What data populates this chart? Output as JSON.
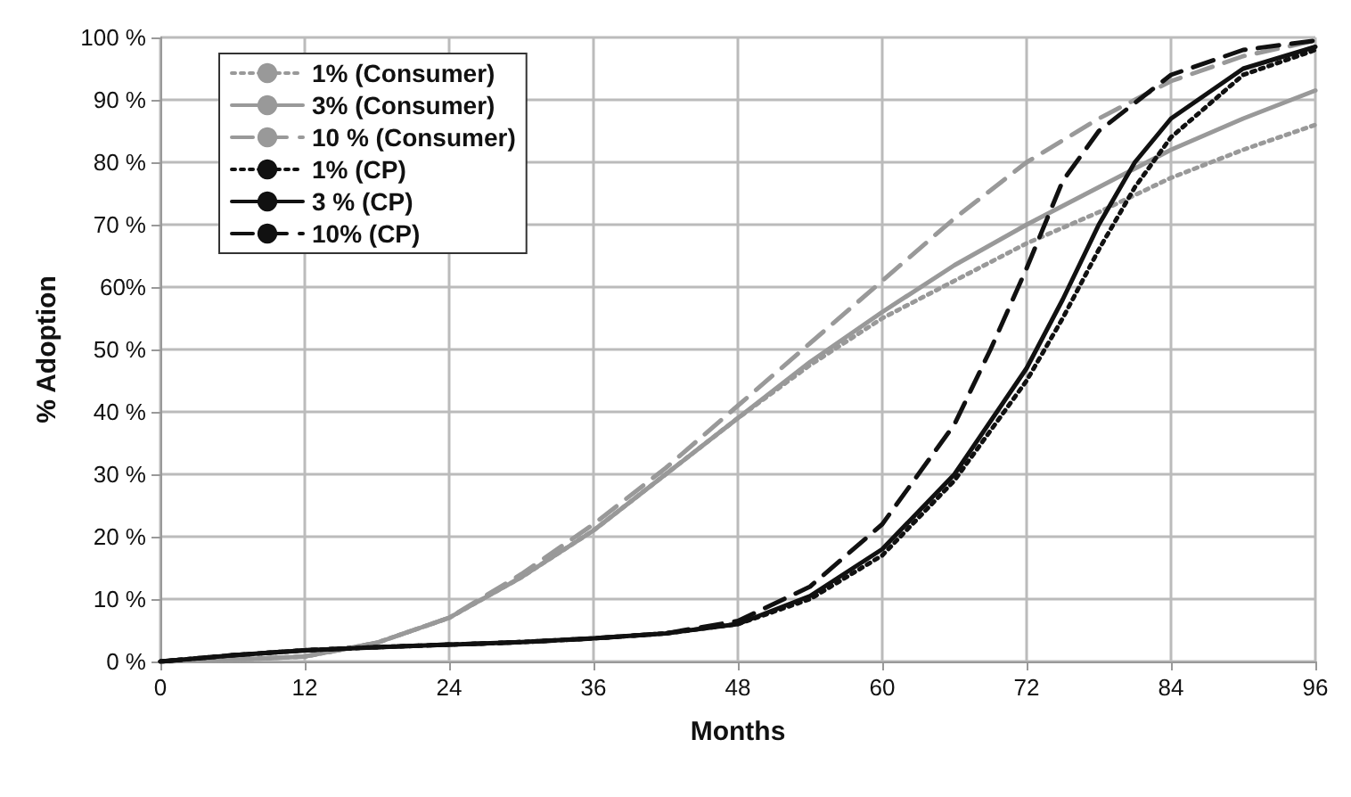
{
  "chart_data": {
    "type": "line",
    "xlabel": "Months",
    "ylabel": "% Adoption",
    "xlim": [
      0,
      96
    ],
    "xticks": [
      0,
      12,
      24,
      36,
      48,
      60,
      72,
      84,
      96
    ],
    "ylim": [
      0,
      100
    ],
    "yticks": [
      {
        "value": 0,
        "label": "0 %"
      },
      {
        "value": 10,
        "label": "10 %"
      },
      {
        "value": 20,
        "label": "20 %"
      },
      {
        "value": 30,
        "label": "30 %"
      },
      {
        "value": 40,
        "label": "40 %"
      },
      {
        "value": 50,
        "label": "50 %"
      },
      {
        "value": 60,
        "label": "60%"
      },
      {
        "value": 70,
        "label": "70 %"
      },
      {
        "value": 80,
        "label": "80 %"
      },
      {
        "value": 90,
        "label": "90 %"
      },
      {
        "value": 100,
        "label": "100 %"
      }
    ],
    "grid": true,
    "legend": "top left",
    "marker": "none",
    "series": [
      {
        "name": "1% (Consumer)",
        "color": "#999999",
        "line_style": "dotted",
        "x": [
          0,
          6,
          12,
          18,
          24,
          30,
          36,
          42,
          48,
          54,
          60,
          66,
          72,
          78,
          84,
          90,
          96
        ],
        "values": [
          0,
          0.3,
          0.8,
          3,
          7,
          13.5,
          21,
          30,
          39,
          47.5,
          55,
          61,
          67,
          72,
          77.5,
          82,
          86
        ]
      },
      {
        "name": "3% (Consumer)",
        "color": "#999999",
        "line_style": "solid",
        "x": [
          0,
          6,
          12,
          18,
          24,
          30,
          36,
          42,
          48,
          54,
          60,
          66,
          72,
          78,
          84,
          90,
          96
        ],
        "values": [
          0,
          0.3,
          0.8,
          3,
          7,
          13.5,
          21,
          30,
          39,
          48,
          56,
          63.5,
          70,
          76,
          82,
          87,
          91.5
        ]
      },
      {
        "name": "10 % (Consumer)",
        "color": "#999999",
        "line_style": "dashed",
        "x": [
          0,
          6,
          12,
          18,
          24,
          30,
          36,
          42,
          48,
          54,
          60,
          66,
          72,
          78,
          84,
          90,
          96
        ],
        "values": [
          0,
          0.3,
          0.8,
          3,
          7,
          14,
          22,
          31,
          41,
          51,
          61,
          71,
          80,
          87,
          93,
          97,
          99.5
        ]
      },
      {
        "name": "1% (CP)",
        "color": "#111111",
        "line_style": "dotted",
        "x": [
          0,
          6,
          12,
          18,
          24,
          30,
          36,
          42,
          48,
          54,
          60,
          66,
          72,
          75,
          78,
          81,
          84,
          90,
          96
        ],
        "values": [
          0,
          1,
          1.8,
          2.3,
          2.7,
          3.1,
          3.7,
          4.5,
          6,
          10,
          17,
          29,
          45,
          55,
          66,
          76,
          84,
          94,
          98
        ]
      },
      {
        "name": "3 % (CP)",
        "color": "#111111",
        "line_style": "solid",
        "x": [
          0,
          6,
          12,
          18,
          24,
          30,
          36,
          42,
          48,
          54,
          60,
          66,
          72,
          75,
          78,
          81,
          84,
          90,
          96
        ],
        "values": [
          0,
          1,
          1.8,
          2.3,
          2.7,
          3.1,
          3.7,
          4.5,
          6,
          10.5,
          18,
          30,
          47,
          58,
          70,
          80,
          87,
          95,
          98.5
        ]
      },
      {
        "name": "10% (CP)",
        "color": "#111111",
        "line_style": "dashed",
        "x": [
          0,
          6,
          12,
          18,
          24,
          30,
          36,
          42,
          48,
          54,
          60,
          66,
          69,
          72,
          75,
          78,
          84,
          90,
          96
        ],
        "values": [
          0,
          1,
          1.8,
          2.3,
          2.7,
          3.1,
          3.7,
          4.5,
          6.5,
          12,
          22,
          38,
          50,
          63,
          77,
          85,
          94,
          98,
          99.5
        ]
      }
    ]
  }
}
